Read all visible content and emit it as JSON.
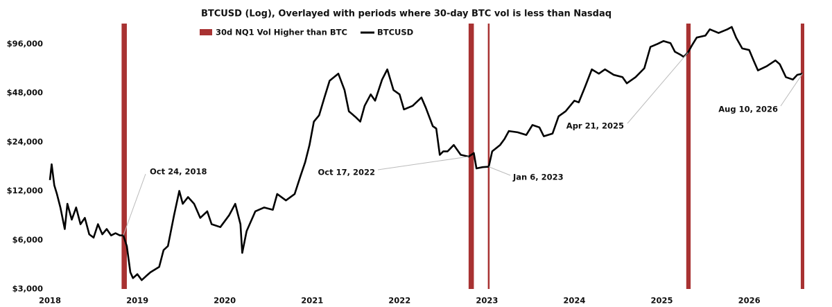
{
  "chart_data": {
    "type": "line",
    "title": "BTCUSD (Log), Overlayed with periods where 30-day BTC vol is less than Nasdaq",
    "log_y": true,
    "grid": false,
    "xlim": [
      2018,
      2026.63
    ],
    "xticks": [
      2018,
      2019,
      2020,
      2021,
      2022,
      2023,
      2024,
      2025,
      2026
    ],
    "ylim": [
      3000,
      128000
    ],
    "yticks": [
      {
        "value": 3000,
        "label": "$3,000"
      },
      {
        "value": 6000,
        "label": "$6,000"
      },
      {
        "value": 12000,
        "label": "$12,000"
      },
      {
        "value": 24000,
        "label": "$24,000"
      },
      {
        "value": 48000,
        "label": "$48,000"
      },
      {
        "value": 96000,
        "label": "$96,000"
      }
    ],
    "periods": {
      "name": "30d NQ1 Vol Higher than BTC",
      "color": "#a83232",
      "ranges": [
        {
          "start": 2018.82,
          "end": 2018.88
        },
        {
          "start": 2022.79,
          "end": 2022.85
        },
        {
          "start": 2023.01,
          "end": 2023.03
        },
        {
          "start": 2025.28,
          "end": 2025.33
        },
        {
          "start": 2026.59,
          "end": 2026.63
        }
      ]
    },
    "series": [
      {
        "name": "BTCUSD",
        "color": "#000000",
        "x": [
          2018.0,
          2018.02,
          2018.05,
          2018.08,
          2018.12,
          2018.17,
          2018.2,
          2018.25,
          2018.3,
          2018.35,
          2018.4,
          2018.45,
          2018.5,
          2018.55,
          2018.6,
          2018.65,
          2018.7,
          2018.75,
          2018.8,
          2018.84,
          2018.88,
          2018.92,
          2018.95,
          2019.0,
          2019.05,
          2019.1,
          2019.15,
          2019.25,
          2019.3,
          2019.35,
          2019.42,
          2019.48,
          2019.52,
          2019.58,
          2019.65,
          2019.72,
          2019.8,
          2019.85,
          2019.95,
          2020.05,
          2020.12,
          2020.18,
          2020.2,
          2020.25,
          2020.35,
          2020.45,
          2020.55,
          2020.6,
          2020.7,
          2020.8,
          2020.87,
          2020.92,
          2020.97,
          2021.02,
          2021.08,
          2021.14,
          2021.2,
          2021.3,
          2021.37,
          2021.42,
          2021.5,
          2021.55,
          2021.6,
          2021.67,
          2021.72,
          2021.8,
          2021.86,
          2021.93,
          2022.0,
          2022.05,
          2022.15,
          2022.25,
          2022.3,
          2022.38,
          2022.42,
          2022.46,
          2022.5,
          2022.55,
          2022.62,
          2022.7,
          2022.79,
          2022.85,
          2022.88,
          2022.95,
          2023.02,
          2023.06,
          2023.15,
          2023.2,
          2023.25,
          2023.35,
          2023.45,
          2023.52,
          2023.6,
          2023.65,
          2023.75,
          2023.82,
          2023.9,
          2024.0,
          2024.05,
          2024.12,
          2024.2,
          2024.28,
          2024.35,
          2024.45,
          2024.55,
          2024.6,
          2024.7,
          2024.8,
          2024.87,
          2024.95,
          2025.02,
          2025.1,
          2025.15,
          2025.22,
          2025.25,
          2025.3,
          2025.35,
          2025.4,
          2025.5,
          2025.55,
          2025.65,
          2025.75,
          2025.8,
          2025.85,
          2025.92,
          2026.0,
          2026.05,
          2026.1,
          2026.2,
          2026.3,
          2026.35,
          2026.42,
          2026.5,
          2026.55,
          2026.61
        ],
        "values": [
          14000,
          17500,
          13000,
          11500,
          9500,
          7000,
          10000,
          8000,
          9500,
          7500,
          8200,
          6500,
          6200,
          7500,
          6500,
          7000,
          6400,
          6600,
          6400,
          6400,
          5500,
          3800,
          3500,
          3700,
          3400,
          3600,
          3800,
          4100,
          5200,
          5500,
          8500,
          12000,
          10000,
          11000,
          10000,
          8200,
          9000,
          7500,
          7200,
          8500,
          10000,
          7500,
          5000,
          6800,
          9000,
          9500,
          9200,
          11500,
          10500,
          11500,
          15000,
          18000,
          23000,
          32000,
          35000,
          45000,
          57000,
          63000,
          50000,
          37000,
          34000,
          32000,
          40000,
          47000,
          43000,
          58000,
          67000,
          50000,
          47000,
          38000,
          40000,
          45000,
          39000,
          30000,
          29000,
          20000,
          21000,
          21000,
          23000,
          20000,
          19500,
          20500,
          16500,
          16800,
          16900,
          21000,
          23000,
          25000,
          28000,
          27500,
          26500,
          30500,
          29500,
          26000,
          27000,
          34500,
          37000,
          43000,
          42000,
          52000,
          67000,
          63000,
          67000,
          62000,
          60000,
          55000,
          60000,
          68000,
          92000,
          96000,
          100000,
          97000,
          86000,
          82000,
          80000,
          85000,
          95000,
          105000,
          108000,
          118000,
          112000,
          118000,
          122000,
          105000,
          90000,
          88000,
          76000,
          66000,
          70000,
          76000,
          72000,
          60000,
          58000,
          62000,
          63000
        ]
      }
    ],
    "annotations": [
      {
        "text": "Oct 24, 2018",
        "x": 2018.84,
        "y": 6400
      },
      {
        "text": "Oct 17, 2022",
        "x": 2022.79,
        "y": 19500
      },
      {
        "text": "Jan 6, 2023",
        "x": 2023.02,
        "y": 16900
      },
      {
        "text": "Apr 21, 2025",
        "x": 2025.3,
        "y": 85000
      },
      {
        "text": "Aug 10, 2026",
        "x": 2026.61,
        "y": 63000
      }
    ]
  }
}
